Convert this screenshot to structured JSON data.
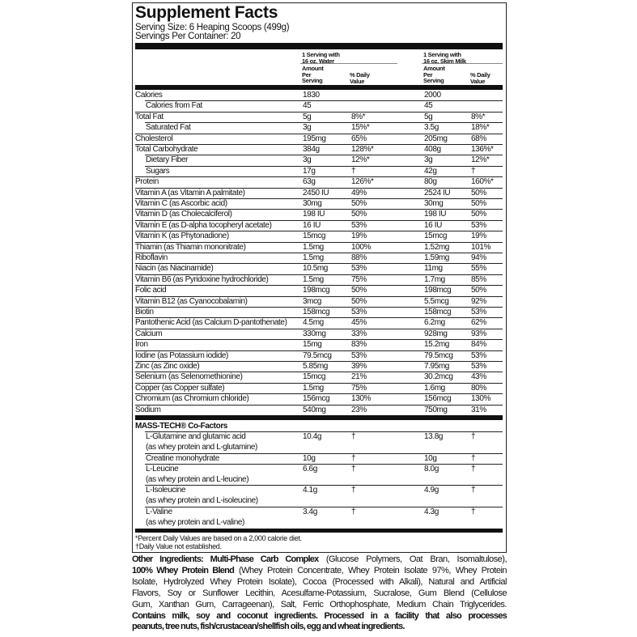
{
  "title": "Supplement Facts",
  "serving_size": "Serving Size: 6 Heaping Scoops (499g)",
  "servings_per_container": "Servings Per Container: 20",
  "columns": {
    "water": {
      "heading1": "1 Serving with",
      "heading2": "16 oz. Water"
    },
    "milk": {
      "heading1": "1 Serving with",
      "heading2": "16 oz. Skim Milk"
    },
    "amount": [
      "Amount",
      "Per",
      "Serving"
    ],
    "dv": [
      "% Daily",
      "Value"
    ]
  },
  "nutrients": [
    {
      "name": "Calories",
      "indent": false,
      "w_amt": "1830",
      "w_dv": "",
      "m_amt": "2000",
      "m_dv": ""
    },
    {
      "name": "Calories from Fat",
      "indent": true,
      "w_amt": "45",
      "w_dv": "",
      "m_amt": "45",
      "m_dv": ""
    },
    {
      "name": "Total Fat",
      "indent": false,
      "w_amt": "5g",
      "w_dv": "8%*",
      "m_amt": "5g",
      "m_dv": "8%*"
    },
    {
      "name": "Saturated Fat",
      "indent": true,
      "w_amt": "3g",
      "w_dv": "15%*",
      "m_amt": "3.5g",
      "m_dv": "18%*"
    },
    {
      "name": "Cholesterol",
      "indent": false,
      "w_amt": "195mg",
      "w_dv": "65%",
      "m_amt": "205mg",
      "m_dv": "68%"
    },
    {
      "name": "Total Carbohydrate",
      "indent": false,
      "w_amt": "384g",
      "w_dv": "128%*",
      "m_amt": "408g",
      "m_dv": "136%*"
    },
    {
      "name": "Dietary Fiber",
      "indent": true,
      "w_amt": "3g",
      "w_dv": "12%*",
      "m_amt": "3g",
      "m_dv": "12%*"
    },
    {
      "name": "Sugars",
      "indent": true,
      "w_amt": "17g",
      "w_dv": "†",
      "m_amt": "42g",
      "m_dv": "†"
    },
    {
      "name": "Protein",
      "indent": false,
      "w_amt": "63g",
      "w_dv": "126%*",
      "m_amt": "80g",
      "m_dv": "160%*"
    },
    {
      "name": "Vitamin A (as Vitamin A palmitate)",
      "indent": false,
      "w_amt": "2450 IU",
      "w_dv": "49%",
      "m_amt": "2524 IU",
      "m_dv": "50%"
    },
    {
      "name": "Vitamin C (as Ascorbic acid)",
      "indent": false,
      "w_amt": "30mg",
      "w_dv": "50%",
      "m_amt": "30mg",
      "m_dv": "50%"
    },
    {
      "name": "Vitamin D (as Cholecalciferol)",
      "indent": false,
      "w_amt": "198 IU",
      "w_dv": "50%",
      "m_amt": "198 IU",
      "m_dv": "50%"
    },
    {
      "name": "Vitamin E (as D-alpha tocopheryl acetate)",
      "indent": false,
      "w_amt": "16 IU",
      "w_dv": "53%",
      "m_amt": "16 IU",
      "m_dv": "53%"
    },
    {
      "name": "Vitamin K (as Phytonadione)",
      "indent": false,
      "w_amt": "15mcg",
      "w_dv": "19%",
      "m_amt": "15mcg",
      "m_dv": "19%"
    },
    {
      "name": "Thiamin (as Thiamin mononitrate)",
      "indent": false,
      "w_amt": "1.5mg",
      "w_dv": "100%",
      "m_amt": "1.52mg",
      "m_dv": "101%"
    },
    {
      "name": "Riboflavin",
      "indent": false,
      "w_amt": "1.5mg",
      "w_dv": "88%",
      "m_amt": "1.59mg",
      "m_dv": "94%"
    },
    {
      "name": "Niacin (as Niacinamide)",
      "indent": false,
      "w_amt": "10.5mg",
      "w_dv": "53%",
      "m_amt": "11mg",
      "m_dv": "55%"
    },
    {
      "name": "Vitamin B6 (as Pyridoxine hydrochloride)",
      "indent": false,
      "w_amt": "1.5mg",
      "w_dv": "75%",
      "m_amt": "1.7mg",
      "m_dv": "85%"
    },
    {
      "name": "Folic acid",
      "indent": false,
      "w_amt": "198mcg",
      "w_dv": "50%",
      "m_amt": "198mcg",
      "m_dv": "50%"
    },
    {
      "name": "Vitamin B12 (as Cyanocobalamin)",
      "indent": false,
      "w_amt": "3mcg",
      "w_dv": "50%",
      "m_amt": "5.5mcg",
      "m_dv": "92%"
    },
    {
      "name": "Biotin",
      "indent": false,
      "w_amt": "158mcg",
      "w_dv": "53%",
      "m_amt": "158mcg",
      "m_dv": "53%"
    },
    {
      "name": "Pantothenic Acid (as Calcium D-pantothenate)",
      "indent": false,
      "w_amt": "4.5mg",
      "w_dv": "45%",
      "m_amt": "6.2mg",
      "m_dv": "62%"
    },
    {
      "name": "Calcium",
      "indent": false,
      "w_amt": "330mg",
      "w_dv": "33%",
      "m_amt": "928mg",
      "m_dv": "93%"
    },
    {
      "name": "Iron",
      "indent": false,
      "w_amt": "15mg",
      "w_dv": "83%",
      "m_amt": "15.2mg",
      "m_dv": "84%"
    },
    {
      "name": "Iodine (as Potassium iodide)",
      "indent": false,
      "w_amt": "79.5mcg",
      "w_dv": "53%",
      "m_amt": "79.5mcg",
      "m_dv": "53%"
    },
    {
      "name": "Zinc (as Zinc oxide)",
      "indent": false,
      "w_amt": "5.85mg",
      "w_dv": "39%",
      "m_amt": "7.95mg",
      "m_dv": "53%"
    },
    {
      "name": "Selenium (as Selenomethionine)",
      "indent": false,
      "w_amt": "15mcg",
      "w_dv": "21%",
      "m_amt": "30.2mcg",
      "m_dv": "43%"
    },
    {
      "name": "Copper (as Copper sulfate)",
      "indent": false,
      "w_amt": "1.5mg",
      "w_dv": "75%",
      "m_amt": "1.6mg",
      "m_dv": "80%"
    },
    {
      "name": "Chromium (as Chromium chloride)",
      "indent": false,
      "w_amt": "156mcg",
      "w_dv": "130%",
      "m_amt": "156mcg",
      "m_dv": "130%"
    },
    {
      "name": "Sodium",
      "indent": false,
      "w_amt": "540mg",
      "w_dv": "23%",
      "m_amt": "750mg",
      "m_dv": "31%"
    }
  ],
  "cofactors_title": "MASS-TECH® Co-Factors",
  "cofactors": [
    {
      "name": "L-Glutamine and glutamic acid",
      "sub": "(as whey protein and L-glutamine)",
      "w_amt": "10.4g",
      "w_dv": "†",
      "m_amt": "13.8g",
      "m_dv": "†"
    },
    {
      "name": "Creatine monohydrate",
      "sub": "",
      "w_amt": "10g",
      "w_dv": "†",
      "m_amt": "10g",
      "m_dv": "†"
    },
    {
      "name": "L-Leucine",
      "sub": "(as whey protein and L-leucine)",
      "w_amt": "6.6g",
      "w_dv": "†",
      "m_amt": "8.0g",
      "m_dv": "†"
    },
    {
      "name": "L-Isoleucine",
      "sub": "(as whey protein and L-isoleucine)",
      "w_amt": "4.1g",
      "w_dv": "†",
      "m_amt": "4.9g",
      "m_dv": "†"
    },
    {
      "name": "L-Valine",
      "sub": "(as whey protein and L-valine)",
      "w_amt": "3.4g",
      "w_dv": "†",
      "m_amt": "4.3g",
      "m_dv": "†"
    }
  ],
  "footnotes": [
    "*Percent Daily Values are based on a 2,000 calorie diet.",
    "†Daily Value not established."
  ],
  "ingredients_lines": [
    [
      {
        "t": "Other Ingredients: Multi-Phase Carb Complex",
        "b": true
      },
      {
        "t": " (Glucose Polymers, Oat Bran, Isomaltulose),",
        "b": false
      }
    ],
    [
      {
        "t": "100% Whey Protein Blend",
        "b": true
      },
      {
        "t": " (Whey Protein Concentrate, Whey Protein Isolate 97%, Whey Protein",
        "b": false
      }
    ],
    [
      {
        "t": "Isolate, Hydrolyzed Whey Protein Isolate), Cocoa (Processed with Alkali), Natural and Artificial",
        "b": false
      }
    ],
    [
      {
        "t": "Flavors, Soy or Sunflower Lecithin, Acesulfame-Potassium, Sucralose, Gum Blend (Cellulose",
        "b": false
      }
    ],
    [
      {
        "t": "Gum, Xanthan Gum, Carrageenan), Salt, Ferric Orthophosphate, Medium Chain Triglycerides.",
        "b": false
      }
    ],
    [
      {
        "t": "Contains milk, soy and coconut ingredients. Processed in a facility that also processes",
        "b": true
      }
    ],
    [
      {
        "t": "peanuts, tree nuts, fish/crustacean/shellfish oils, egg and wheat ingredients.",
        "b": true
      }
    ]
  ]
}
